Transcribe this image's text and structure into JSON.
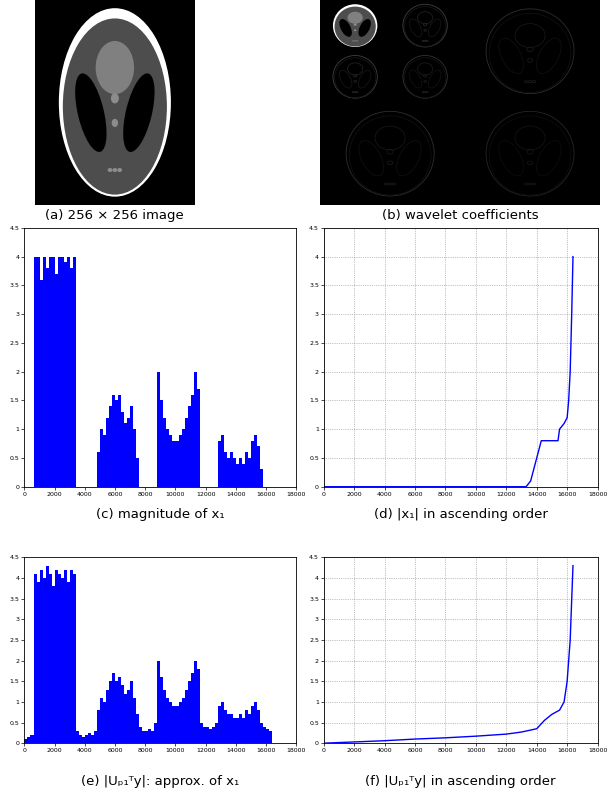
{
  "chart_data": [
    {
      "type": "image",
      "title": "(a) 256 × 256 image",
      "tick_labels": false
    },
    {
      "type": "image",
      "title": "(b) wavelet coefficients",
      "tick_labels": false
    },
    {
      "type": "bar",
      "title": "(c) magnitude of x₁",
      "color": "#0000ff",
      "grid": false,
      "x": [
        100,
        300,
        500,
        700,
        900,
        1100,
        1300,
        1500,
        1700,
        1900,
        2100,
        2300,
        2500,
        2700,
        2900,
        3100,
        3300,
        3500,
        3700,
        3900,
        4100,
        4300,
        4500,
        4700,
        4900,
        5100,
        5300,
        5500,
        5700,
        5900,
        6100,
        6300,
        6500,
        6700,
        6900,
        7100,
        7300,
        7500,
        7700,
        7900,
        8100,
        8300,
        8500,
        8700,
        8900,
        9100,
        9300,
        9500,
        9700,
        9900,
        10100,
        10300,
        10500,
        10700,
        10900,
        11100,
        11300,
        11500,
        11700,
        11900,
        12100,
        12300,
        12500,
        12700,
        12900,
        13100,
        13300,
        13500,
        13700,
        13900,
        14100,
        14300,
        14500,
        14700,
        14900,
        15100,
        15300,
        15500,
        15700,
        15900,
        16100,
        16300
      ],
      "values": [
        0,
        0,
        0,
        4.0,
        4.0,
        3.6,
        4.0,
        3.8,
        4.0,
        4.0,
        3.7,
        4.0,
        4.0,
        3.9,
        4.0,
        3.8,
        4.0,
        0,
        0,
        0,
        0,
        0,
        0,
        0,
        0.6,
        1.0,
        0.9,
        1.2,
        1.4,
        1.6,
        1.5,
        1.6,
        1.3,
        1.1,
        1.2,
        1.4,
        1.0,
        0.5,
        0,
        0,
        0,
        0,
        0,
        0,
        2.0,
        1.5,
        1.2,
        1.0,
        0.9,
        0.8,
        0.8,
        0.9,
        1.0,
        1.2,
        1.4,
        1.6,
        2.0,
        1.7,
        0,
        0,
        0,
        0,
        0,
        0,
        0.8,
        0.9,
        0.6,
        0.5,
        0.6,
        0.5,
        0.4,
        0.5,
        0.4,
        0.6,
        0.5,
        0.8,
        0.9,
        0.7,
        0.3,
        0,
        0,
        0
      ],
      "xlim": [
        0,
        18000
      ],
      "xticks": [
        0,
        2000,
        4000,
        6000,
        8000,
        10000,
        12000,
        14000,
        16000,
        18000
      ],
      "ylim": [
        0,
        4.5
      ],
      "yticks": [
        0,
        0.5,
        1,
        1.5,
        2,
        2.5,
        3,
        3.5,
        4,
        4.5
      ]
    },
    {
      "type": "line",
      "title": "(d) |x₁| in ascending order",
      "color": "#0000ff",
      "grid": true,
      "x": [
        0,
        13300,
        13600,
        13800,
        14000,
        14200,
        14300,
        15400,
        15500,
        15800,
        16000,
        16100,
        16200,
        16300,
        16384
      ],
      "values": [
        0,
        0,
        0.1,
        0.3,
        0.5,
        0.7,
        0.8,
        0.8,
        1.0,
        1.1,
        1.2,
        1.5,
        2.0,
        3.0,
        4.0
      ],
      "xlim": [
        0,
        18000
      ],
      "xticks": [
        0,
        2000,
        4000,
        6000,
        8000,
        10000,
        12000,
        14000,
        16000,
        18000
      ],
      "ylim": [
        0,
        4.5
      ],
      "yticks": [
        0,
        0.5,
        1,
        1.5,
        2,
        2.5,
        3,
        3.5,
        4,
        4.5
      ]
    },
    {
      "type": "bar",
      "title": "(e) |Uₚ₁ᵀy|: approx. of x₁",
      "color": "#0000ff",
      "grid": false,
      "x": [
        100,
        300,
        500,
        700,
        900,
        1100,
        1300,
        1500,
        1700,
        1900,
        2100,
        2300,
        2500,
        2700,
        2900,
        3100,
        3300,
        3500,
        3700,
        3900,
        4100,
        4300,
        4500,
        4700,
        4900,
        5100,
        5300,
        5500,
        5700,
        5900,
        6100,
        6300,
        6500,
        6700,
        6900,
        7100,
        7300,
        7500,
        7700,
        7900,
        8100,
        8300,
        8500,
        8700,
        8900,
        9100,
        9300,
        9500,
        9700,
        9900,
        10100,
        10300,
        10500,
        10700,
        10900,
        11100,
        11300,
        11500,
        11700,
        11900,
        12100,
        12300,
        12500,
        12700,
        12900,
        13100,
        13300,
        13500,
        13700,
        13900,
        14100,
        14300,
        14500,
        14700,
        14900,
        15100,
        15300,
        15500,
        15700,
        15900,
        16100,
        16300
      ],
      "values": [
        0.1,
        0.15,
        0.2,
        4.1,
        3.9,
        4.2,
        4.0,
        4.3,
        4.1,
        3.8,
        4.2,
        4.1,
        4.0,
        4.2,
        3.9,
        4.2,
        4.1,
        0.3,
        0.2,
        0.15,
        0.2,
        0.25,
        0.2,
        0.3,
        0.8,
        1.1,
        1.0,
        1.3,
        1.5,
        1.7,
        1.5,
        1.6,
        1.4,
        1.2,
        1.3,
        1.5,
        1.1,
        0.7,
        0.4,
        0.3,
        0.3,
        0.35,
        0.3,
        0.5,
        2.0,
        1.6,
        1.3,
        1.1,
        1.0,
        0.9,
        0.9,
        1.0,
        1.1,
        1.3,
        1.5,
        1.7,
        2.0,
        1.8,
        0.5,
        0.4,
        0.4,
        0.35,
        0.4,
        0.5,
        0.9,
        1.0,
        0.8,
        0.7,
        0.7,
        0.6,
        0.6,
        0.7,
        0.6,
        0.8,
        0.7,
        0.9,
        1.0,
        0.8,
        0.5,
        0.4,
        0.35,
        0.3
      ],
      "xlim": [
        0,
        18000
      ],
      "xticks": [
        0,
        2000,
        4000,
        6000,
        8000,
        10000,
        12000,
        14000,
        16000,
        18000
      ],
      "ylim": [
        0,
        4.5
      ],
      "yticks": [
        0,
        0.5,
        1,
        1.5,
        2,
        2.5,
        3,
        3.5,
        4,
        4.5
      ]
    },
    {
      "type": "line",
      "title": "(f) |Uₚ₁ᵀy| in ascending order",
      "color": "#0000ff",
      "grid": true,
      "x": [
        0,
        2000,
        4000,
        6000,
        8000,
        10000,
        12000,
        13000,
        14000,
        14500,
        15000,
        15500,
        15800,
        16000,
        16200,
        16384
      ],
      "values": [
        0,
        0.03,
        0.06,
        0.1,
        0.13,
        0.17,
        0.22,
        0.27,
        0.35,
        0.55,
        0.7,
        0.8,
        1.0,
        1.5,
        2.5,
        4.3
      ],
      "xlim": [
        0,
        18000
      ],
      "xticks": [
        0,
        2000,
        4000,
        6000,
        8000,
        10000,
        12000,
        14000,
        16000,
        18000
      ],
      "ylim": [
        0,
        4.5
      ],
      "yticks": [
        0,
        0.5,
        1,
        1.5,
        2,
        2.5,
        3,
        3.5,
        4,
        4.5
      ]
    }
  ]
}
